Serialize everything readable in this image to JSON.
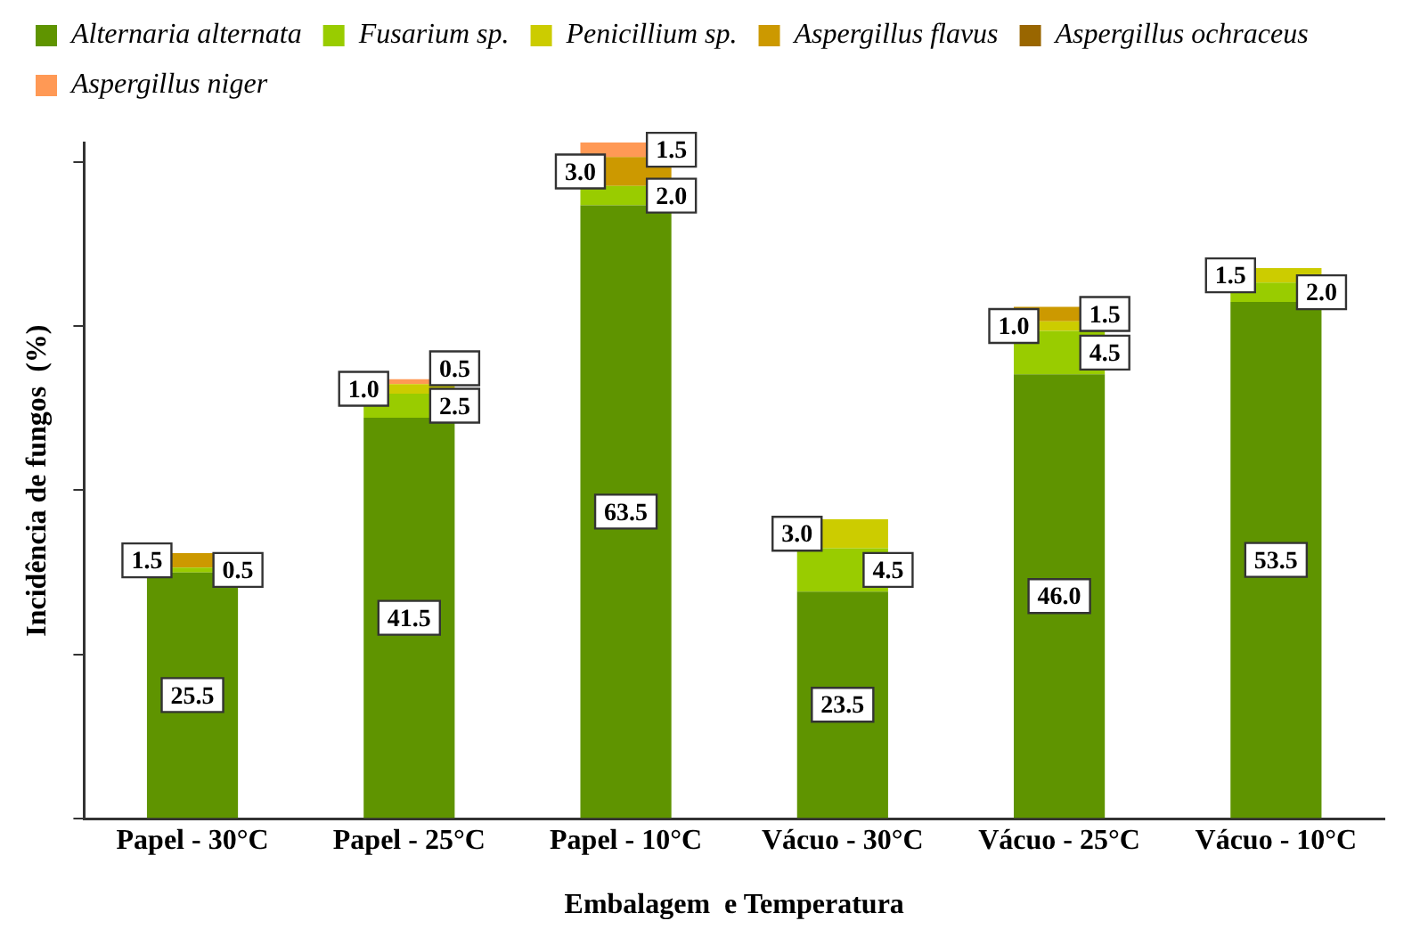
{
  "chart_data": {
    "type": "bar",
    "stacked": true,
    "xlabel": "Embalagem  e Temperatura",
    "ylabel": "Incidência de fungos  (%)",
    "categories": [
      "Papel - 30°C",
      "Papel - 25°C",
      "Papel - 10°C",
      "Vácuo - 30°C",
      "Vácuo - 25°C",
      "Vácuo - 10°C"
    ],
    "ylim": [
      0,
      70
    ],
    "yticks": [
      {
        "value": 0,
        "label": null
      },
      {
        "value": 17,
        "label": null
      },
      {
        "value": 34,
        "label": null
      },
      {
        "value": 51,
        "label": null
      },
      {
        "value": 68,
        "label": null
      }
    ],
    "tick_labels": "x",
    "grid": false,
    "legend": "top",
    "data_labels": true,
    "series": [
      {
        "name": "Alternaria alternata",
        "color": "#5f9400",
        "values": [
          25.5,
          41.5,
          63.5,
          23.5,
          46.0,
          53.5
        ],
        "value_labels": [
          "25.5",
          "41.5",
          "63.5",
          "23.5",
          "46.0",
          "53.5"
        ]
      },
      {
        "name": "Fusarium sp.",
        "color": "#99cc00",
        "values": [
          0.5,
          2.5,
          2.0,
          4.5,
          4.5,
          2.0
        ],
        "value_labels": [
          "0.5",
          "2.5",
          "2.0",
          "4.5",
          "4.5",
          "2.0"
        ]
      },
      {
        "name": "Penicillium sp.",
        "color": "#cccc00",
        "values": [
          null,
          1.0,
          null,
          3.0,
          1.0,
          1.5
        ],
        "value_labels": [
          null,
          "1.0",
          null,
          "3.0",
          "1.0",
          "1.5"
        ]
      },
      {
        "name": "Aspergillus flavus",
        "color": "#cc9900",
        "values": [
          1.5,
          null,
          3.0,
          null,
          1.5,
          null
        ],
        "value_labels": [
          "1.5",
          null,
          "3.0",
          null,
          "1.5",
          null
        ]
      },
      {
        "name": "Aspergillus ochraceus",
        "color": "#996600",
        "values": [
          null,
          null,
          null,
          null,
          null,
          null
        ]
      },
      {
        "name": "Aspergillus niger",
        "color": "#ff9955",
        "values": [
          null,
          0.5,
          1.5,
          null,
          null,
          null
        ],
        "value_labels": [
          null,
          "0.5",
          "1.5",
          null,
          null,
          null
        ]
      }
    ]
  }
}
